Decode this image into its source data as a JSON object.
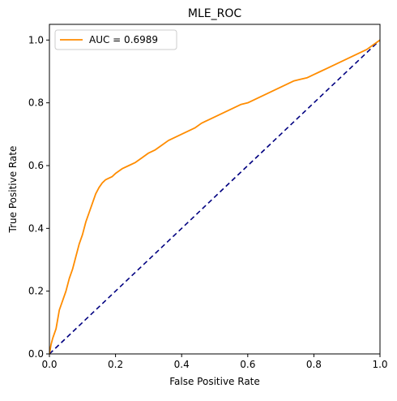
{
  "chart_data": {
    "type": "line",
    "title": "MLE_ROC",
    "xlabel": "False Positive Rate",
    "ylabel": "True Positive Rate",
    "xlim": [
      0.0,
      1.0
    ],
    "ylim": [
      0.0,
      1.05
    ],
    "xticks": [
      0.0,
      0.2,
      0.4,
      0.6,
      0.8,
      1.0
    ],
    "yticks": [
      0.0,
      0.2,
      0.4,
      0.6,
      0.8,
      1.0
    ],
    "xtick_labels": [
      "0.0",
      "0.2",
      "0.4",
      "0.6",
      "0.8",
      "1.0"
    ],
    "ytick_labels": [
      "0.0",
      "0.2",
      "0.4",
      "0.6",
      "0.8",
      "1.0"
    ],
    "grid": false,
    "legend_position": "top-left",
    "series": [
      {
        "name": "AUC = 0.6989",
        "color": "#ff8c00",
        "line_style": "solid",
        "x": [
          0.0,
          0.005,
          0.01,
          0.02,
          0.03,
          0.04,
          0.05,
          0.06,
          0.07,
          0.08,
          0.09,
          0.1,
          0.11,
          0.12,
          0.13,
          0.14,
          0.15,
          0.16,
          0.17,
          0.18,
          0.19,
          0.2,
          0.22,
          0.24,
          0.26,
          0.28,
          0.3,
          0.32,
          0.34,
          0.36,
          0.38,
          0.4,
          0.42,
          0.44,
          0.46,
          0.48,
          0.5,
          0.52,
          0.54,
          0.56,
          0.58,
          0.6,
          0.62,
          0.64,
          0.66,
          0.68,
          0.7,
          0.72,
          0.74,
          0.76,
          0.78,
          0.8,
          0.82,
          0.84,
          0.86,
          0.88,
          0.9,
          0.92,
          0.94,
          0.96,
          0.98,
          1.0
        ],
        "y": [
          0.0,
          0.03,
          0.05,
          0.08,
          0.14,
          0.17,
          0.2,
          0.24,
          0.27,
          0.31,
          0.35,
          0.38,
          0.42,
          0.45,
          0.48,
          0.51,
          0.53,
          0.545,
          0.555,
          0.56,
          0.565,
          0.575,
          0.59,
          0.6,
          0.61,
          0.625,
          0.64,
          0.65,
          0.665,
          0.68,
          0.69,
          0.7,
          0.71,
          0.72,
          0.735,
          0.745,
          0.755,
          0.765,
          0.775,
          0.785,
          0.795,
          0.8,
          0.81,
          0.82,
          0.83,
          0.84,
          0.85,
          0.86,
          0.87,
          0.875,
          0.88,
          0.89,
          0.9,
          0.91,
          0.92,
          0.93,
          0.94,
          0.95,
          0.96,
          0.97,
          0.985,
          1.0
        ]
      },
      {
        "name": "",
        "color": "#000080",
        "line_style": "dashed",
        "x": [
          0.0,
          1.0
        ],
        "y": [
          0.0,
          1.0
        ]
      }
    ]
  }
}
